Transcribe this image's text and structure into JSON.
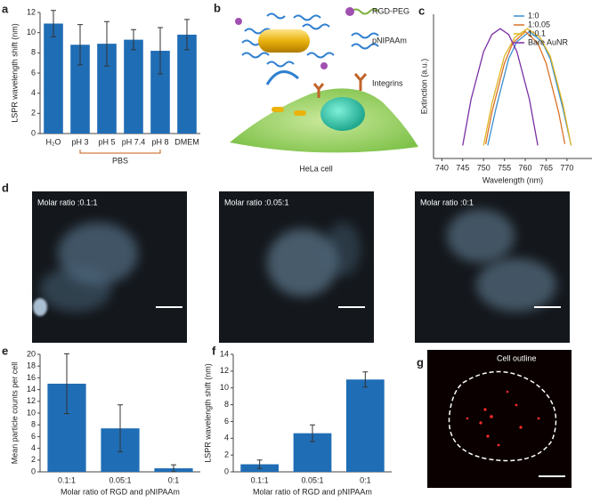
{
  "chart_data": [
    {
      "type": "bar",
      "panel": "a",
      "ylabel": "LSPR wavelength shift (nm)",
      "categories": [
        "H₂O",
        "pH 3",
        "pH 5",
        "pH 7.4",
        "pH 8",
        "DMEM"
      ],
      "values": [
        10.9,
        8.8,
        8.9,
        9.3,
        8.2,
        9.8
      ],
      "errors": [
        1.3,
        2.0,
        2.2,
        1.0,
        2.3,
        1.5
      ],
      "annotation": "PBS",
      "color": "#1f6db5",
      "ylim": [
        0,
        12
      ],
      "yticks": [
        0,
        2,
        4,
        6,
        8,
        10,
        12
      ]
    },
    {
      "type": "line",
      "panel": "c",
      "xlabel": "Wavelength (nm)",
      "ylabel": "Extinction (a.u.)",
      "xlim": [
        738,
        776
      ],
      "xticks": [
        740,
        745,
        750,
        755,
        760,
        765,
        770
      ],
      "ylim": [
        0,
        1
      ],
      "legend": "top-right",
      "series": [
        {
          "name": "1:0",
          "color": "#3a8fd0",
          "x": [
            751,
            753,
            756,
            758,
            761,
            764,
            766,
            769,
            771
          ],
          "values": [
            0.09,
            0.35,
            0.69,
            0.81,
            0.88,
            0.81,
            0.69,
            0.35,
            0.09
          ]
        },
        {
          "name": "1:0.05",
          "color": "#d9722a",
          "x": [
            750.5,
            752,
            755,
            757,
            760,
            763,
            765,
            768,
            769.5
          ],
          "values": [
            0.1,
            0.32,
            0.66,
            0.8,
            0.88,
            0.8,
            0.66,
            0.32,
            0.1
          ]
        },
        {
          "name": "1:0.1",
          "color": "#e2b51f",
          "x": [
            750,
            752,
            755,
            757.5,
            760.5,
            763.5,
            766,
            769,
            771
          ],
          "values": [
            0.09,
            0.38,
            0.71,
            0.84,
            0.9,
            0.84,
            0.71,
            0.38,
            0.09
          ]
        },
        {
          "name": "Bare AuNR",
          "color": "#7b2fa6",
          "x": [
            745,
            747,
            750,
            752,
            754,
            756,
            758,
            761,
            763
          ],
          "values": [
            0.09,
            0.41,
            0.74,
            0.86,
            0.9,
            0.86,
            0.74,
            0.41,
            0.09
          ]
        }
      ]
    },
    {
      "type": "bar",
      "panel": "e",
      "ylabel": "Mean particle counts  per cell",
      "xlabel": "Molar ratio of RGD and pNIPAAm",
      "categories": [
        "0.1:1",
        "0.05:1",
        "0:1"
      ],
      "values": [
        15,
        7.4,
        0.6
      ],
      "errors": [
        5.1,
        4.0,
        0.6
      ],
      "color": "#1f6db5",
      "ylim": [
        0,
        20
      ],
      "yticks": [
        0,
        2,
        4,
        6,
        8,
        10,
        12,
        14,
        16,
        18,
        20
      ]
    },
    {
      "type": "bar",
      "panel": "f",
      "ylabel": "LSPR wavelength shift (nm)",
      "xlabel": "Molar ratio of RGD and pNIPAAm",
      "categories": [
        "0.1:1",
        "0.05:1",
        "0:1"
      ],
      "values": [
        0.9,
        4.6,
        11
      ],
      "errors": [
        0.5,
        1.0,
        0.9
      ],
      "color": "#1f6db5",
      "ylim": [
        0,
        14
      ],
      "yticks": [
        0,
        2,
        4,
        6,
        8,
        10,
        12,
        14
      ]
    }
  ],
  "diagram": {
    "panel": "b",
    "labels": [
      "RGD-PEG",
      "pNIPAAm",
      "Integrins",
      "HeLa cell"
    ]
  },
  "images": {
    "panel": "d",
    "labels": [
      "Molar ratio :0.1:1",
      "Molar ratio :0.05:1",
      "Molar ratio :0:1"
    ]
  },
  "outline_image": {
    "panel": "g",
    "label": "Cell outline"
  }
}
